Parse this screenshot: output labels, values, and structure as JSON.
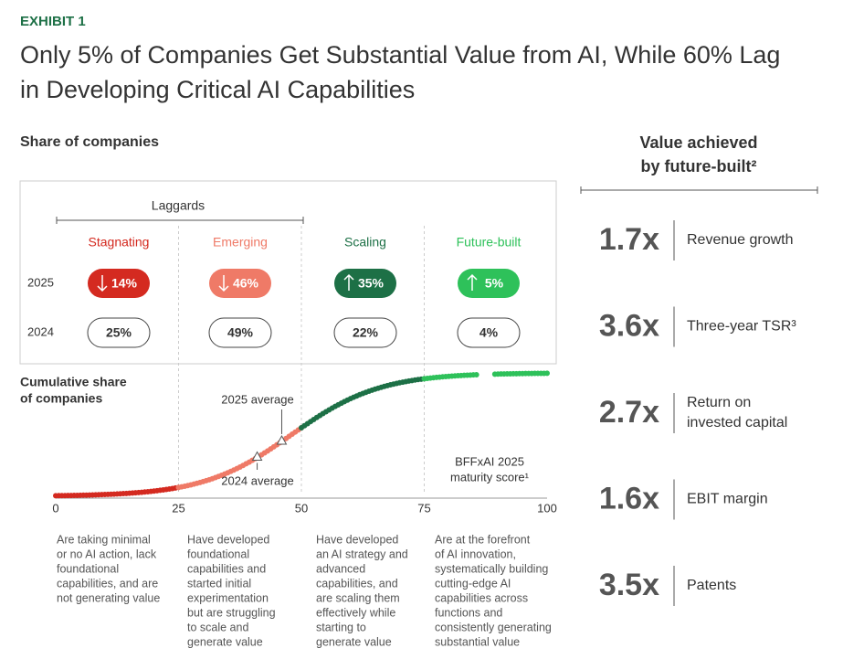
{
  "header": {
    "exhibit": "EXHIBIT 1",
    "title_lines": [
      "Only 5% of Companies Get Substantial Value from AI, While 60% Lag",
      "in Developing Critical AI Capabilities"
    ]
  },
  "left": {
    "heading": "Share of companies",
    "group_label": "Laggards",
    "row_labels": [
      "2025",
      "2024"
    ],
    "segments": [
      {
        "name": "Stagnating",
        "color": "#d42a20",
        "trend_2025": "down",
        "share_2025": "14%",
        "share_2024": "25%",
        "description": [
          "Are taking minimal",
          "or no AI action, lack",
          "foundational",
          "capabilities, and are",
          "not generating value"
        ]
      },
      {
        "name": "Emerging",
        "color": "#ef7a67",
        "trend_2025": "down",
        "share_2025": "46%",
        "share_2024": "49%",
        "description": [
          "Have developed",
          "foundational",
          "capabilities and",
          "started initial",
          "experimentation",
          "but are struggling",
          "to scale and",
          "generate value"
        ]
      },
      {
        "name": "Scaling",
        "color": "#1d7046",
        "trend_2025": "up",
        "share_2025": "35%",
        "share_2024": "22%",
        "description": [
          "Have developed",
          "an AI strategy and",
          "advanced",
          "capabilities, and",
          "are scaling them",
          "effectively while",
          "starting to",
          "generate value"
        ]
      },
      {
        "name": "Future-built",
        "color": "#2ec15a",
        "trend_2025": "up",
        "share_2025": "5%",
        "share_2024": "4%",
        "description": [
          "Are at the forefront",
          "of AI innovation,",
          "systematically building",
          "cutting-edge AI",
          "capabilities across",
          "functions and",
          "consistently generating",
          "substantial value"
        ]
      }
    ]
  },
  "curve": {
    "heading": [
      "Cumulative share",
      "of companies"
    ],
    "xlim": [
      0,
      100
    ],
    "xticks": [
      0,
      25,
      50,
      75,
      100
    ],
    "axis_label": [
      "BFFxAI 2025",
      "maturity score¹"
    ],
    "markers": [
      {
        "label": "2025 average",
        "x": 46
      },
      {
        "label": "2024 average",
        "x": 41
      }
    ]
  },
  "value_panel": {
    "heading": [
      "Value achieved",
      "by future-built²"
    ],
    "metrics": [
      {
        "value": "1.7x",
        "label": [
          "Revenue growth"
        ]
      },
      {
        "value": "3.6x",
        "label": [
          "Three-year TSR³"
        ]
      },
      {
        "value": "2.7x",
        "label": [
          "Return on",
          "invested capital"
        ]
      },
      {
        "value": "1.6x",
        "label": [
          "EBIT margin"
        ]
      },
      {
        "value": "3.5x",
        "label": [
          "Patents"
        ]
      }
    ]
  }
}
